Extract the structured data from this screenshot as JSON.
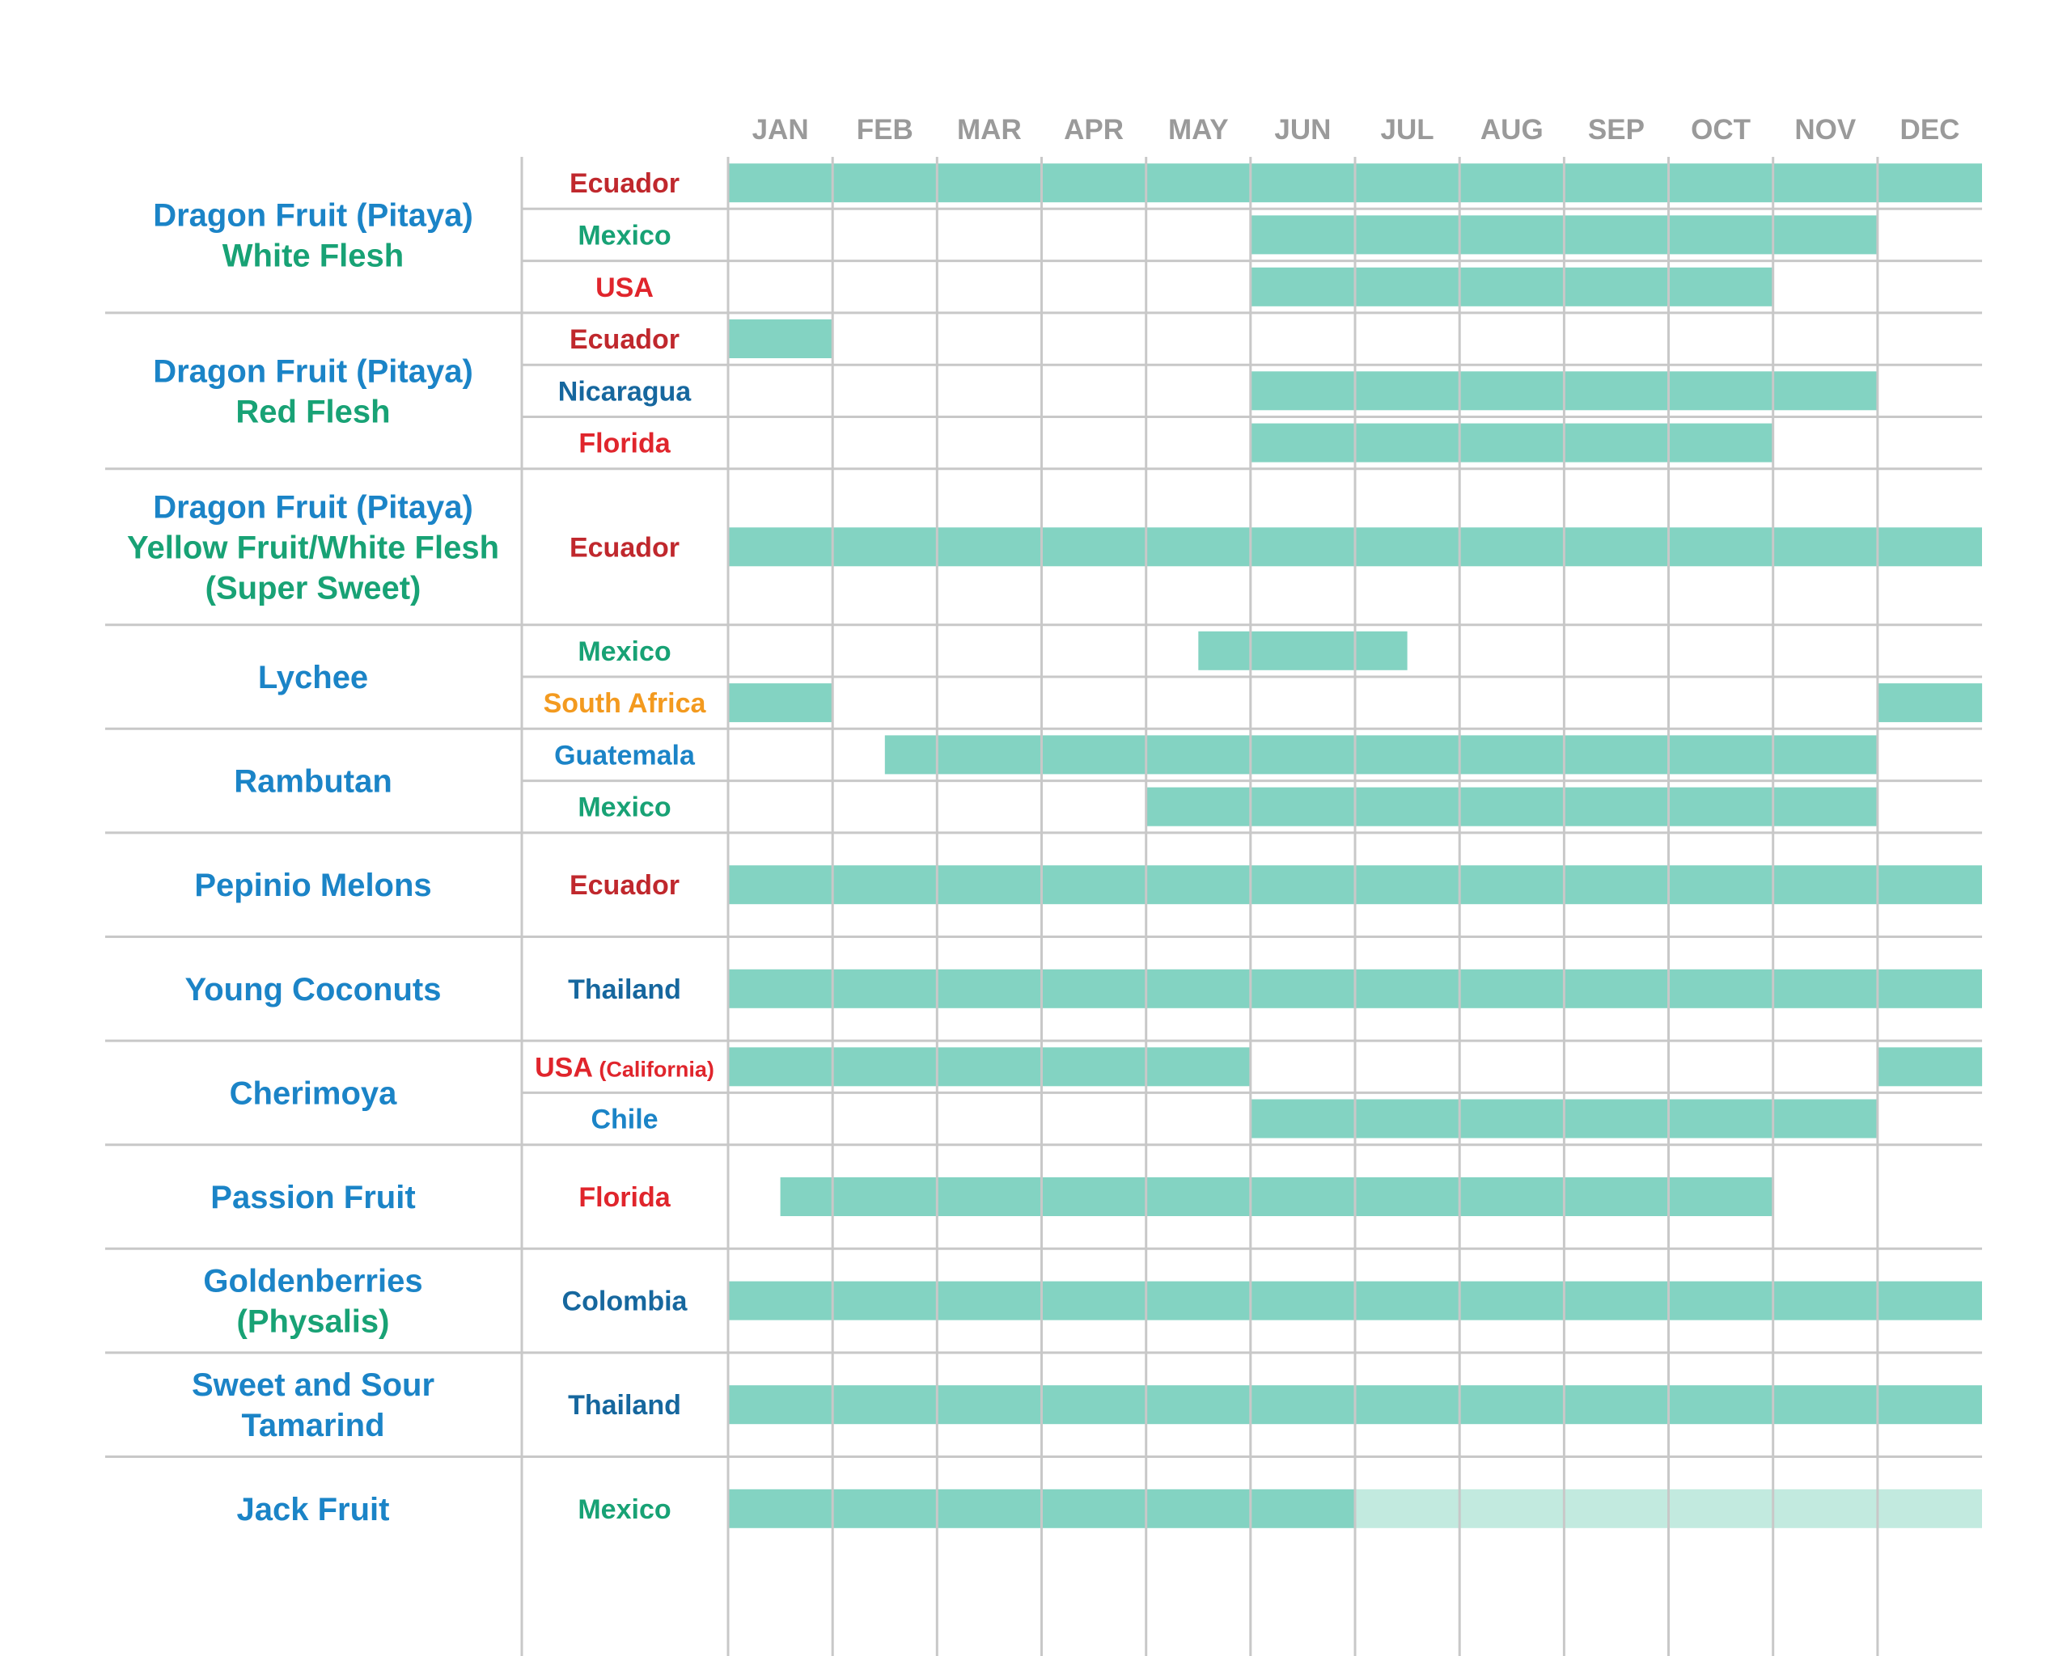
{
  "chart_data": {
    "type": "gantt",
    "title": "",
    "months": [
      "JAN",
      "FEB",
      "MAR",
      "APR",
      "MAY",
      "JUN",
      "JUL",
      "AUG",
      "SEP",
      "OCT",
      "NOV",
      "DEC"
    ],
    "colors": {
      "bar": "#83d3c2",
      "bar_light": "#c2eadf",
      "grid": "#c8c8c8",
      "month_label": "#9a9a9a",
      "product_blue": "#1b84c7",
      "product_green": "#18a275"
    },
    "groups": [
      {
        "name": [
          {
            "text": "Dragon Fruit (Pitaya)",
            "color": "#1b84c7"
          },
          {
            "text": "White Flesh",
            "color": "#18a275"
          }
        ],
        "origins": [
          {
            "label": "Ecuador",
            "color": "#c0282d",
            "bars": [
              {
                "start": 0,
                "end": 12
              }
            ]
          },
          {
            "label": "Mexico",
            "color": "#18a275",
            "bars": [
              {
                "start": 5,
                "end": 11
              }
            ]
          },
          {
            "label": "USA",
            "color": "#e0252c",
            "bars": [
              {
                "start": 5,
                "end": 10
              }
            ]
          }
        ]
      },
      {
        "name": [
          {
            "text": "Dragon Fruit (Pitaya)",
            "color": "#1b84c7"
          },
          {
            "text": "Red Flesh",
            "color": "#18a275"
          }
        ],
        "origins": [
          {
            "label": "Ecuador",
            "color": "#c0282d",
            "bars": [
              {
                "start": 0,
                "end": 1
              }
            ]
          },
          {
            "label": "Nicaragua",
            "color": "#16679e",
            "bars": [
              {
                "start": 5,
                "end": 11
              }
            ]
          },
          {
            "label": "Florida",
            "color": "#e0252c",
            "bars": [
              {
                "start": 5,
                "end": 10
              }
            ]
          }
        ]
      },
      {
        "name": [
          {
            "text": "Dragon Fruit (Pitaya)",
            "color": "#1b84c7"
          },
          {
            "text": "Yellow Fruit/White Flesh",
            "color": "#18a275"
          },
          {
            "text": "(Super Sweet)",
            "color": "#18a275"
          }
        ],
        "origins": [
          {
            "label": "Ecuador",
            "color": "#c0282d",
            "span": 3,
            "bars": [
              {
                "start": 0,
                "end": 12
              }
            ]
          }
        ]
      },
      {
        "name": [
          {
            "text": "Lychee",
            "color": "#1b84c7"
          }
        ],
        "origins": [
          {
            "label": "Mexico",
            "color": "#18a275",
            "bars": [
              {
                "start": 4.5,
                "end": 6.5
              }
            ]
          },
          {
            "label": "South Africa",
            "color": "#f39a1f",
            "bars": [
              {
                "start": 0,
                "end": 1
              },
              {
                "start": 11,
                "end": 12
              }
            ]
          }
        ]
      },
      {
        "name": [
          {
            "text": "Rambutan",
            "color": "#1b84c7"
          }
        ],
        "origins": [
          {
            "label": "Guatemala",
            "color": "#1b84c7",
            "bars": [
              {
                "start": 1.5,
                "end": 11
              }
            ]
          },
          {
            "label": "Mexico",
            "color": "#18a275",
            "bars": [
              {
                "start": 4,
                "end": 11
              }
            ]
          }
        ]
      },
      {
        "name": [
          {
            "text": "Pepinio Melons",
            "color": "#1b84c7"
          }
        ],
        "origins": [
          {
            "label": "Ecuador",
            "color": "#c0282d",
            "span": 2,
            "bars": [
              {
                "start": 0,
                "end": 12
              }
            ]
          }
        ]
      },
      {
        "name": [
          {
            "text": "Young Coconuts",
            "color": "#1b84c7"
          }
        ],
        "origins": [
          {
            "label": "Thailand",
            "color": "#16679e",
            "span": 2,
            "bars": [
              {
                "start": 0,
                "end": 12
              }
            ]
          }
        ]
      },
      {
        "name": [
          {
            "text": "Cherimoya",
            "color": "#1b84c7"
          }
        ],
        "origins": [
          {
            "label": "USA",
            "sublabel": "(California)",
            "color": "#e0252c",
            "bars": [
              {
                "start": 0,
                "end": 5
              },
              {
                "start": 11,
                "end": 12
              }
            ]
          },
          {
            "label": "Chile",
            "color": "#1b84c7",
            "bars": [
              {
                "start": 5,
                "end": 11
              }
            ]
          }
        ]
      },
      {
        "name": [
          {
            "text": "Passion Fruit",
            "color": "#1b84c7"
          }
        ],
        "origins": [
          {
            "label": "Florida",
            "color": "#e0252c",
            "span": 2,
            "bars": [
              {
                "start": 0.5,
                "end": 10
              }
            ]
          }
        ]
      },
      {
        "name": [
          {
            "text": "Goldenberries",
            "color": "#1b84c7"
          },
          {
            "text": "(Physalis)",
            "color": "#18a275"
          }
        ],
        "origins": [
          {
            "label": "Colombia",
            "color": "#16679e",
            "span": 2,
            "bars": [
              {
                "start": 0,
                "end": 12
              }
            ]
          }
        ]
      },
      {
        "name": [
          {
            "text": "Sweet and Sour",
            "color": "#1b84c7"
          },
          {
            "text": "Tamarind",
            "color": "#1b84c7"
          }
        ],
        "origins": [
          {
            "label": "Thailand",
            "color": "#16679e",
            "span": 2,
            "bars": [
              {
                "start": 0,
                "end": 12
              }
            ]
          }
        ]
      },
      {
        "name": [
          {
            "text": "Jack Fruit",
            "color": "#1b84c7"
          }
        ],
        "origins": [
          {
            "label": "Mexico",
            "color": "#18a275",
            "span": 2,
            "bars": [
              {
                "start": 0,
                "end": 6
              },
              {
                "start": 6,
                "end": 12,
                "light": true
              }
            ]
          }
        ]
      }
    ]
  }
}
